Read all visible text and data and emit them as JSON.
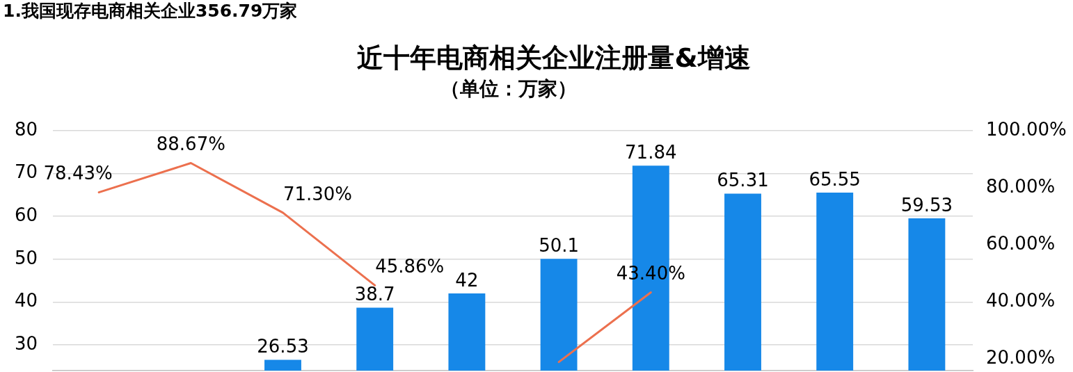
{
  "chart_data": {
    "type": "bar",
    "title": "近十年电商相关企业注册量&增速",
    "subtitle": "（单位：万家）",
    "annotations": [
      "1.我国现存电商相关企业356.79万家"
    ],
    "categories": [
      null,
      null,
      null,
      null,
      null,
      null,
      null,
      null,
      null,
      null
    ],
    "series": [
      {
        "color": "#1688e8",
        "values": [
          null,
          null,
          26.53,
          38.7,
          42,
          50.1,
          71.84,
          65.31,
          65.55,
          59.53
        ],
        "value_labels": [
          null,
          null,
          "26.53",
          "38.7",
          "42",
          "50.1",
          "71.84",
          "65.31",
          "65.55",
          "59.53"
        ]
      },
      {
        "type": "line",
        "axis": "y2",
        "color": "#ec704e",
        "values": [
          78.43,
          88.67,
          71.3,
          45.86,
          null,
          19,
          43.4,
          null,
          null,
          null
        ],
        "value_labels": [
          "78.43%",
          "88.67%",
          "71.30%",
          "45.86%",
          null,
          null,
          "43.40%",
          null,
          null,
          null
        ]
      }
    ],
    "ylim": [
      24,
      80
    ],
    "yticks": [
      30,
      40,
      50,
      60,
      70,
      80
    ],
    "y2lim": [
      16,
      100
    ],
    "y2ticks": [
      {
        "value": 20,
        "label": "20.00%"
      },
      {
        "value": 40,
        "label": "40.00%"
      },
      {
        "value": 60,
        "label": "60.00%"
      },
      {
        "value": 80,
        "label": "80.00%"
      },
      {
        "value": 100,
        "label": "100.00%"
      }
    ],
    "grid": "y",
    "marker": "none",
    "line_style": "solid"
  }
}
